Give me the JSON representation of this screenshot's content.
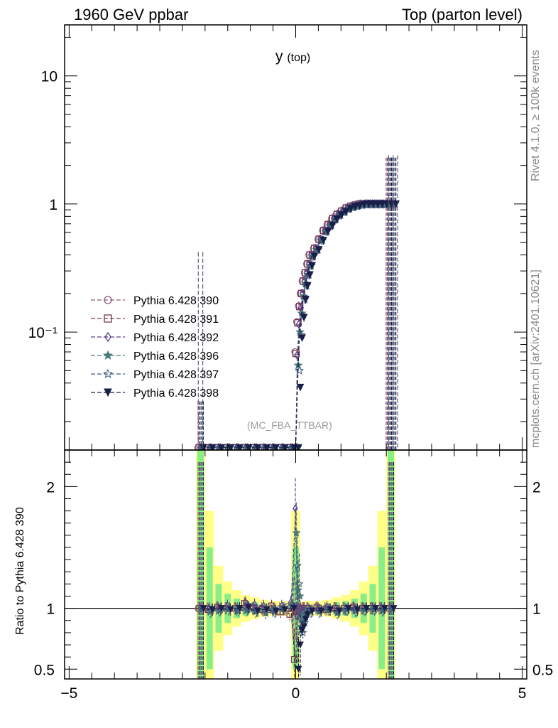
{
  "header": {
    "left": "1960 GeV ppbar",
    "right": "Top (parton level)"
  },
  "side": {
    "rivet": "Rivet 4.1.0, ≥ 100k events",
    "mcplots": "mcplots.cern.ch [arXiv:2401.10621]"
  },
  "chart_data": [
    {
      "type": "line",
      "panel": "main",
      "title": "y (top)",
      "title_main": "y",
      "title_sub": "(top)",
      "annotation": "(MC_FBA_TTBAR)",
      "yscale": "log",
      "xlim": [
        -5.1,
        5.1
      ],
      "ylim": [
        0.012,
        25
      ],
      "yticklabels": [
        "10⁻¹",
        "1",
        "10"
      ],
      "ytickvalues": [
        0.1,
        1,
        10
      ],
      "x": [
        -2.1,
        -1.9,
        -1.7,
        -1.5,
        -1.3,
        -1.1,
        -0.9,
        -0.7,
        -0.5,
        -0.3,
        -0.1,
        0.0,
        0.04,
        0.08,
        0.12,
        0.16,
        0.2,
        0.25,
        0.3,
        0.35,
        0.45,
        0.55,
        0.65,
        0.75,
        0.85,
        0.95,
        1.05,
        1.15,
        1.25,
        1.35,
        1.45,
        1.55,
        1.65,
        1.75,
        1.85,
        1.95,
        2.05,
        2.15
      ],
      "series": [
        {
          "name": "Pythia 6.428 390",
          "color": "#8b5a7c",
          "marker": "circle-open",
          "values": [
            0.0125,
            0.0125,
            0.0125,
            0.0125,
            0.0125,
            0.0125,
            0.0125,
            0.0125,
            0.0125,
            0.0125,
            0.0125,
            0.0125,
            0.07,
            0.12,
            0.16,
            0.2,
            0.25,
            0.29,
            0.34,
            0.4,
            0.45,
            0.53,
            0.62,
            0.69,
            0.77,
            0.83,
            0.88,
            0.93,
            0.96,
            0.98,
            1.0,
            1.0,
            1.0,
            1.0,
            1.0,
            1.0,
            1.0,
            1.0
          ]
        },
        {
          "name": "Pythia 6.428 391",
          "color": "#7a3a4a",
          "marker": "square-open",
          "values": [
            0.0125,
            0.0125,
            0.0125,
            0.0125,
            0.0125,
            0.0125,
            0.0125,
            0.0125,
            0.0125,
            0.0125,
            0.0125,
            0.0125,
            0.068,
            0.118,
            0.158,
            0.2,
            0.25,
            0.29,
            0.34,
            0.4,
            0.45,
            0.53,
            0.62,
            0.69,
            0.77,
            0.83,
            0.88,
            0.93,
            0.96,
            0.98,
            1.0,
            1.0,
            1.0,
            1.0,
            1.0,
            1.0,
            1.0,
            1.0
          ]
        },
        {
          "name": "Pythia 6.428 392",
          "color": "#5b3a8a",
          "marker": "diamond-open",
          "values": [
            0.0125,
            0.0125,
            0.0125,
            0.0125,
            0.0125,
            0.0125,
            0.0125,
            0.0125,
            0.0125,
            0.0125,
            0.0125,
            0.0125,
            0.066,
            0.115,
            0.155,
            0.2,
            0.25,
            0.29,
            0.34,
            0.4,
            0.45,
            0.53,
            0.62,
            0.69,
            0.77,
            0.83,
            0.88,
            0.93,
            0.96,
            0.98,
            1.0,
            1.0,
            1.0,
            1.0,
            1.0,
            1.0,
            1.0,
            1.0
          ]
        },
        {
          "name": "Pythia 6.428 396",
          "color": "#4a7a7a",
          "marker": "star-filled",
          "values": [
            0.0125,
            0.0125,
            0.0125,
            0.0125,
            0.0125,
            0.0125,
            0.0125,
            0.0125,
            0.0125,
            0.0125,
            0.0125,
            0.0125,
            0.055,
            0.1,
            0.14,
            0.19,
            0.24,
            0.28,
            0.33,
            0.39,
            0.44,
            0.52,
            0.61,
            0.68,
            0.76,
            0.82,
            0.87,
            0.92,
            0.95,
            0.97,
            0.99,
            1.0,
            1.0,
            1.0,
            1.0,
            1.0,
            1.0,
            1.0
          ]
        },
        {
          "name": "Pythia 6.428 397",
          "color": "#3a5a7a",
          "marker": "star-open",
          "values": [
            0.0125,
            0.0125,
            0.0125,
            0.0125,
            0.0125,
            0.0125,
            0.0125,
            0.0125,
            0.0125,
            0.0125,
            0.0125,
            0.0125,
            0.05,
            0.095,
            0.135,
            0.18,
            0.23,
            0.28,
            0.33,
            0.39,
            0.44,
            0.52,
            0.61,
            0.68,
            0.76,
            0.82,
            0.87,
            0.92,
            0.95,
            0.97,
            0.99,
            1.0,
            1.0,
            1.0,
            1.0,
            1.0,
            1.0,
            1.0
          ]
        },
        {
          "name": "Pythia 6.428 398",
          "color": "#1a1f4a",
          "marker": "triangle-down-filled",
          "values": [
            0.0125,
            0.0125,
            0.0125,
            0.0125,
            0.0125,
            0.0125,
            0.0125,
            0.0125,
            0.0125,
            0.0125,
            0.0125,
            0.0125,
            0.037,
            0.09,
            0.13,
            0.18,
            0.23,
            0.28,
            0.33,
            0.39,
            0.44,
            0.52,
            0.61,
            0.68,
            0.76,
            0.82,
            0.87,
            0.92,
            0.95,
            0.97,
            0.99,
            1.0,
            1.0,
            1.0,
            1.0,
            1.0,
            1.0,
            1.0
          ]
        }
      ],
      "legend_position": "middle-left"
    },
    {
      "type": "line",
      "panel": "ratio",
      "ylabel": "Ratio to Pythia 6.428 390",
      "xlim": [
        -5.1,
        5.1
      ],
      "ylim": [
        0.42,
        2.3
      ],
      "yticklabels": [
        "0.5",
        "1",
        "2"
      ],
      "ytickvalues": [
        0.5,
        1,
        2
      ],
      "xticklabels": [
        "−5",
        "0",
        "5"
      ],
      "xtickvalues": [
        -5,
        0,
        5
      ],
      "reference_line": 1,
      "band_x": [
        -2.1,
        -1.9,
        -1.7,
        -1.5,
        -1.3,
        -1.1,
        -0.9,
        -0.7,
        -0.5,
        -0.3,
        -0.1,
        0.0,
        0.1,
        0.3,
        0.5,
        0.7,
        0.9,
        1.1,
        1.3,
        1.5,
        1.7,
        1.9,
        2.1
      ],
      "band_green_halfwidth": [
        1.3,
        0.5,
        0.2,
        0.12,
        0.08,
        0.06,
        0.05,
        0.04,
        0.03,
        0.03,
        0.03,
        0.5,
        0.03,
        0.03,
        0.03,
        0.04,
        0.05,
        0.06,
        0.08,
        0.12,
        0.2,
        0.5,
        1.3
      ],
      "band_yellow_halfwidth": [
        1.6,
        0.8,
        0.35,
        0.22,
        0.15,
        0.11,
        0.09,
        0.07,
        0.06,
        0.06,
        0.06,
        0.8,
        0.06,
        0.06,
        0.06,
        0.07,
        0.09,
        0.11,
        0.15,
        0.22,
        0.35,
        0.8,
        1.6
      ],
      "x": [
        -2.1,
        -1.9,
        -1.7,
        -1.5,
        -1.3,
        -1.1,
        -0.9,
        -0.7,
        -0.5,
        -0.3,
        -0.1,
        0.0,
        0.04,
        0.08,
        0.12,
        0.16,
        0.2,
        0.3,
        0.5,
        0.7,
        0.9,
        1.1,
        1.3,
        1.5,
        1.7,
        1.9,
        2.1
      ],
      "series": [
        {
          "name": "Pythia 6.428 390",
          "color": "#8b5a7c",
          "marker": "circle-open",
          "values": [
            1,
            1,
            1,
            1,
            1,
            1,
            1,
            1,
            1,
            1,
            1,
            1,
            1,
            1,
            1,
            1,
            1,
            1,
            1,
            1,
            1,
            1,
            1,
            1,
            1,
            1,
            1
          ]
        },
        {
          "name": "Pythia 6.428 391",
          "color": "#7a3a4a",
          "marker": "square-open",
          "values": [
            1,
            0.99,
            1.01,
            1.0,
            1.0,
            1.04,
            1.0,
            0.99,
            1.02,
            0.97,
            0.95,
            0.58,
            0.97,
            0.98,
            0.99,
            0.98,
            1.0,
            1.0,
            1.01,
            0.99,
            1.0,
            1.0,
            1.01,
            1.0,
            1.0,
            1.0,
            1.0
          ]
        },
        {
          "name": "Pythia 6.428 392",
          "color": "#5b3a8a",
          "marker": "diamond-open",
          "values": [
            1,
            1.0,
            1.0,
            1.02,
            0.99,
            1.05,
            1.03,
            1.02,
            0.98,
            1.02,
            1.05,
            1.82,
            0.93,
            0.96,
            0.99,
            0.97,
            1.0,
            0.99,
            1.0,
            1.01,
            1.0,
            0.99,
            1.0,
            1.0,
            1.0,
            1.0,
            1.0
          ]
        },
        {
          "name": "Pythia 6.428 396",
          "color": "#4a7a7a",
          "marker": "star-filled",
          "values": [
            1,
            0.97,
            0.98,
            0.99,
            1.0,
            0.98,
            0.97,
            0.99,
            0.99,
            1.0,
            1.03,
            1.62,
            1.15,
            1.1,
            0.93,
            0.9,
            0.97,
            0.98,
            0.97,
            0.99,
            0.96,
            0.99,
            0.98,
            0.99,
            1.0,
            0.98,
            1.0
          ]
        },
        {
          "name": "Pythia 6.428 397",
          "color": "#3a5a7a",
          "marker": "star-open",
          "values": [
            1,
            0.98,
            0.99,
            1.0,
            0.98,
            0.99,
            0.98,
            0.96,
            0.97,
            1.0,
            1.02,
            1.35,
            1.2,
            0.85,
            0.8,
            0.88,
            0.95,
            0.97,
            0.98,
            0.99,
            0.97,
            0.99,
            0.98,
            0.99,
            0.99,
            0.99,
            1.0
          ]
        },
        {
          "name": "Pythia 6.428 398",
          "color": "#1a1f4a",
          "marker": "triangle-down-filled",
          "values": [
            1,
            0.99,
            1.0,
            0.99,
            1.0,
            1.01,
            0.98,
            0.99,
            0.98,
            0.99,
            1.0,
            0.5,
            0.7,
            0.82,
            0.85,
            0.91,
            0.95,
            0.98,
            0.98,
            0.99,
            0.98,
            1.0,
            0.99,
            1.0,
            1.0,
            1.0,
            1.0
          ]
        }
      ]
    }
  ]
}
